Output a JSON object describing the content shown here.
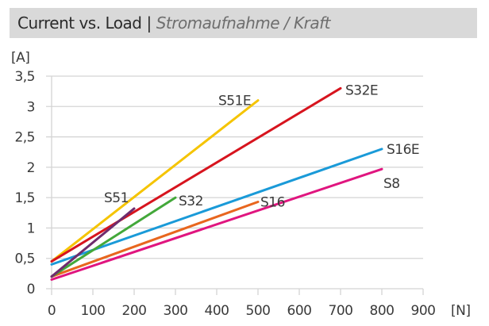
{
  "header": {
    "title_main": "Current vs. Load",
    "separator": "|",
    "title_sub": "Stromaufnahme / Kraft"
  },
  "chart_data": {
    "type": "line",
    "title": "Current vs. Load | Stromaufnahme / Kraft",
    "xlabel": "[N]",
    "ylabel": "[A]",
    "xlim": [
      0,
      900
    ],
    "ylim": [
      0,
      3.5
    ],
    "grid": true,
    "x_ticks": [
      "0",
      "100",
      "200",
      "300",
      "400",
      "500",
      "600",
      "700",
      "800",
      "900"
    ],
    "x_tick_values": [
      0,
      100,
      200,
      300,
      400,
      500,
      600,
      700,
      800,
      900
    ],
    "y_ticks": [
      "0",
      "0,5",
      "1",
      "1,5",
      "2",
      "2,5",
      "3",
      "3,5"
    ],
    "y_tick_values": [
      0,
      0.5,
      1,
      1.5,
      2,
      2.5,
      3,
      3.5
    ],
    "series": [
      {
        "name": "S51E",
        "color": "#f5c400",
        "x": [
          0,
          500
        ],
        "y": [
          0.45,
          3.1
        ]
      },
      {
        "name": "S32E",
        "color": "#d7141e",
        "x": [
          0,
          700
        ],
        "y": [
          0.45,
          3.3
        ]
      },
      {
        "name": "S16E",
        "color": "#1a9ad8",
        "x": [
          0,
          800
        ],
        "y": [
          0.4,
          2.3
        ]
      },
      {
        "name": "S8",
        "color": "#e0157f",
        "x": [
          0,
          800
        ],
        "y": [
          0.15,
          1.97
        ]
      },
      {
        "name": "S16",
        "color": "#e8661e",
        "x": [
          0,
          500
        ],
        "y": [
          0.2,
          1.43
        ]
      },
      {
        "name": "S32",
        "color": "#43a83a",
        "x": [
          0,
          300
        ],
        "y": [
          0.2,
          1.5
        ]
      },
      {
        "name": "S51",
        "color": "#6e2c6e",
        "x": [
          0,
          200
        ],
        "y": [
          0.2,
          1.32
        ]
      }
    ]
  }
}
